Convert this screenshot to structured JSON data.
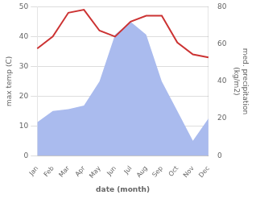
{
  "chart_data": {
    "type": "line",
    "xlabel": "date (month)",
    "ylabel": "max temp (C)",
    "y2label": "med. precipitation\n(kg/m2)",
    "categories": [
      "Jan",
      "Feb",
      "Mar",
      "Apr",
      "May",
      "Jun",
      "Jul",
      "Aug",
      "Sep",
      "Oct",
      "Nov",
      "Dec"
    ],
    "series": [
      {
        "type": "area",
        "axis": "y2",
        "color": "#aabbee",
        "values": [
          18,
          24,
          25,
          27,
          40,
          65,
          72,
          65,
          40,
          24,
          8,
          20
        ]
      },
      {
        "type": "line",
        "color": "#cc3333",
        "values": [
          36,
          40,
          48,
          49,
          42,
          40,
          45,
          47,
          47,
          38,
          34,
          33
        ]
      }
    ],
    "ylim": [
      0,
      50
    ],
    "yticks": [
      0,
      10,
      20,
      30,
      40,
      50
    ],
    "y2lim": [
      0,
      80
    ],
    "y2ticks": [
      0,
      20,
      40,
      60,
      80
    ],
    "grid": true
  }
}
